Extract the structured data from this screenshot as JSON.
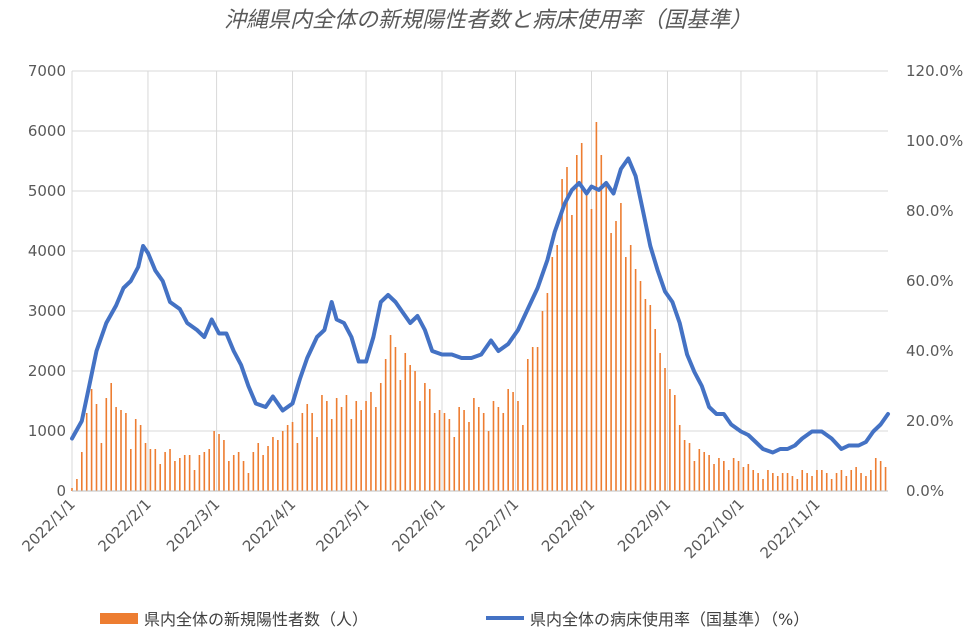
{
  "chart_data": {
    "type": "bar+line",
    "title": "沖縄県内全体の新規陽性者数と病床使用率（国基準）",
    "x_tick_labels": [
      "2022/1/1",
      "2022/2/1",
      "2022/3/1",
      "2022/4/1",
      "2022/5/1",
      "2022/6/1",
      "2022/7/1",
      "2022/8/1",
      "2022/9/1",
      "2022/10/1",
      "2022/11/1"
    ],
    "x_range": [
      "2022-01-01",
      "2022-11-30"
    ],
    "y_left": {
      "ylim": [
        0,
        7000
      ],
      "ticks": [
        "0",
        "1000",
        "2000",
        "3000",
        "4000",
        "5000",
        "6000",
        "7000"
      ]
    },
    "y_right": {
      "ylim": [
        0,
        120
      ],
      "ticks": [
        "0.0%",
        "20.0%",
        "40.0%",
        "60.0%",
        "80.0%",
        "100.0%",
        "120.0%"
      ]
    },
    "grid": true,
    "legend_position": "bottom",
    "series": [
      {
        "name": "県内全体の新規陽性者数（人）",
        "type": "bar",
        "axis": "left",
        "color": "#ED7D31",
        "points": [
          [
            "2022-01-01",
            50
          ],
          [
            "2022-01-03",
            200
          ],
          [
            "2022-01-05",
            650
          ],
          [
            "2022-01-07",
            1300
          ],
          [
            "2022-01-09",
            1700
          ],
          [
            "2022-01-11",
            1450
          ],
          [
            "2022-01-13",
            800
          ],
          [
            "2022-01-15",
            1550
          ],
          [
            "2022-01-17",
            1800
          ],
          [
            "2022-01-19",
            1400
          ],
          [
            "2022-01-21",
            1350
          ],
          [
            "2022-01-23",
            1300
          ],
          [
            "2022-01-25",
            700
          ],
          [
            "2022-01-27",
            1200
          ],
          [
            "2022-01-29",
            1100
          ],
          [
            "2022-01-31",
            800
          ],
          [
            "2022-02-02",
            700
          ],
          [
            "2022-02-04",
            700
          ],
          [
            "2022-02-06",
            450
          ],
          [
            "2022-02-08",
            650
          ],
          [
            "2022-02-10",
            700
          ],
          [
            "2022-02-12",
            500
          ],
          [
            "2022-02-14",
            550
          ],
          [
            "2022-02-16",
            600
          ],
          [
            "2022-02-18",
            600
          ],
          [
            "2022-02-20",
            350
          ],
          [
            "2022-02-22",
            600
          ],
          [
            "2022-02-24",
            650
          ],
          [
            "2022-02-26",
            700
          ],
          [
            "2022-02-28",
            1000
          ],
          [
            "2022-03-02",
            950
          ],
          [
            "2022-03-04",
            850
          ],
          [
            "2022-03-06",
            500
          ],
          [
            "2022-03-08",
            600
          ],
          [
            "2022-03-10",
            650
          ],
          [
            "2022-03-12",
            500
          ],
          [
            "2022-03-14",
            300
          ],
          [
            "2022-03-16",
            650
          ],
          [
            "2022-03-18",
            800
          ],
          [
            "2022-03-20",
            600
          ],
          [
            "2022-03-22",
            750
          ],
          [
            "2022-03-24",
            900
          ],
          [
            "2022-03-26",
            850
          ],
          [
            "2022-03-28",
            1000
          ],
          [
            "2022-03-30",
            1100
          ],
          [
            "2022-04-01",
            1150
          ],
          [
            "2022-04-03",
            800
          ],
          [
            "2022-04-05",
            1300
          ],
          [
            "2022-04-07",
            1450
          ],
          [
            "2022-04-09",
            1300
          ],
          [
            "2022-04-11",
            900
          ],
          [
            "2022-04-13",
            1600
          ],
          [
            "2022-04-15",
            1500
          ],
          [
            "2022-04-17",
            1200
          ],
          [
            "2022-04-19",
            1550
          ],
          [
            "2022-04-21",
            1400
          ],
          [
            "2022-04-23",
            1600
          ],
          [
            "2022-04-25",
            1200
          ],
          [
            "2022-04-27",
            1500
          ],
          [
            "2022-04-29",
            1350
          ],
          [
            "2022-05-01",
            1500
          ],
          [
            "2022-05-03",
            1650
          ],
          [
            "2022-05-05",
            1400
          ],
          [
            "2022-05-07",
            1800
          ],
          [
            "2022-05-09",
            2200
          ],
          [
            "2022-05-11",
            2600
          ],
          [
            "2022-05-13",
            2400
          ],
          [
            "2022-05-15",
            1850
          ],
          [
            "2022-05-17",
            2300
          ],
          [
            "2022-05-19",
            2100
          ],
          [
            "2022-05-21",
            2000
          ],
          [
            "2022-05-23",
            1500
          ],
          [
            "2022-05-25",
            1800
          ],
          [
            "2022-05-27",
            1700
          ],
          [
            "2022-05-29",
            1300
          ],
          [
            "2022-05-31",
            1350
          ],
          [
            "2022-06-02",
            1300
          ],
          [
            "2022-06-04",
            1200
          ],
          [
            "2022-06-06",
            900
          ],
          [
            "2022-06-08",
            1400
          ],
          [
            "2022-06-10",
            1350
          ],
          [
            "2022-06-12",
            1150
          ],
          [
            "2022-06-14",
            1550
          ],
          [
            "2022-06-16",
            1400
          ],
          [
            "2022-06-18",
            1300
          ],
          [
            "2022-06-20",
            1000
          ],
          [
            "2022-06-22",
            1500
          ],
          [
            "2022-06-24",
            1400
          ],
          [
            "2022-06-26",
            1300
          ],
          [
            "2022-06-28",
            1700
          ],
          [
            "2022-06-30",
            1650
          ],
          [
            "2022-07-02",
            1500
          ],
          [
            "2022-07-04",
            1100
          ],
          [
            "2022-07-06",
            2200
          ],
          [
            "2022-07-08",
            2400
          ],
          [
            "2022-07-10",
            2400
          ],
          [
            "2022-07-12",
            3000
          ],
          [
            "2022-07-14",
            3300
          ],
          [
            "2022-07-16",
            3900
          ],
          [
            "2022-07-18",
            4100
          ],
          [
            "2022-07-20",
            5200
          ],
          [
            "2022-07-22",
            5400
          ],
          [
            "2022-07-24",
            4600
          ],
          [
            "2022-07-26",
            5600
          ],
          [
            "2022-07-28",
            5800
          ],
          [
            "2022-07-30",
            5000
          ],
          [
            "2022-08-01",
            4700
          ],
          [
            "2022-08-03",
            6150
          ],
          [
            "2022-08-05",
            5600
          ],
          [
            "2022-08-07",
            5100
          ],
          [
            "2022-08-09",
            4300
          ],
          [
            "2022-08-11",
            4500
          ],
          [
            "2022-08-13",
            4800
          ],
          [
            "2022-08-15",
            3900
          ],
          [
            "2022-08-17",
            4100
          ],
          [
            "2022-08-19",
            3700
          ],
          [
            "2022-08-21",
            3500
          ],
          [
            "2022-08-23",
            3200
          ],
          [
            "2022-08-25",
            3100
          ],
          [
            "2022-08-27",
            2700
          ],
          [
            "2022-08-29",
            2300
          ],
          [
            "2022-08-31",
            2050
          ],
          [
            "2022-09-02",
            1700
          ],
          [
            "2022-09-04",
            1600
          ],
          [
            "2022-09-06",
            1100
          ],
          [
            "2022-09-08",
            850
          ],
          [
            "2022-09-10",
            800
          ],
          [
            "2022-09-12",
            500
          ],
          [
            "2022-09-14",
            700
          ],
          [
            "2022-09-16",
            650
          ],
          [
            "2022-09-18",
            600
          ],
          [
            "2022-09-20",
            450
          ],
          [
            "2022-09-22",
            550
          ],
          [
            "2022-09-24",
            500
          ],
          [
            "2022-09-26",
            350
          ],
          [
            "2022-09-28",
            550
          ],
          [
            "2022-09-30",
            500
          ],
          [
            "2022-10-02",
            400
          ],
          [
            "2022-10-04",
            450
          ],
          [
            "2022-10-06",
            350
          ],
          [
            "2022-10-08",
            300
          ],
          [
            "2022-10-10",
            200
          ],
          [
            "2022-10-12",
            350
          ],
          [
            "2022-10-14",
            300
          ],
          [
            "2022-10-16",
            250
          ],
          [
            "2022-10-18",
            300
          ],
          [
            "2022-10-20",
            300
          ],
          [
            "2022-10-22",
            250
          ],
          [
            "2022-10-24",
            200
          ],
          [
            "2022-10-26",
            350
          ],
          [
            "2022-10-28",
            300
          ],
          [
            "2022-10-30",
            250
          ],
          [
            "2022-11-01",
            350
          ],
          [
            "2022-11-03",
            350
          ],
          [
            "2022-11-05",
            300
          ],
          [
            "2022-11-07",
            200
          ],
          [
            "2022-11-09",
            300
          ],
          [
            "2022-11-11",
            350
          ],
          [
            "2022-11-13",
            250
          ],
          [
            "2022-11-15",
            350
          ],
          [
            "2022-11-17",
            400
          ],
          [
            "2022-11-19",
            300
          ],
          [
            "2022-11-21",
            250
          ],
          [
            "2022-11-23",
            350
          ],
          [
            "2022-11-25",
            550
          ],
          [
            "2022-11-27",
            500
          ],
          [
            "2022-11-29",
            400
          ]
        ]
      },
      {
        "name": "県内全体の病床使用率（国基準）（%）",
        "type": "line",
        "axis": "right",
        "color": "#4472C4",
        "points": [
          [
            "2022-01-01",
            15
          ],
          [
            "2022-01-05",
            20
          ],
          [
            "2022-01-08",
            30
          ],
          [
            "2022-01-11",
            40
          ],
          [
            "2022-01-15",
            48
          ],
          [
            "2022-01-19",
            53
          ],
          [
            "2022-01-22",
            58
          ],
          [
            "2022-01-25",
            60
          ],
          [
            "2022-01-28",
            64
          ],
          [
            "2022-01-30",
            70
          ],
          [
            "2022-02-01",
            68
          ],
          [
            "2022-02-04",
            63
          ],
          [
            "2022-02-07",
            60
          ],
          [
            "2022-02-10",
            54
          ],
          [
            "2022-02-14",
            52
          ],
          [
            "2022-02-17",
            48
          ],
          [
            "2022-02-21",
            46
          ],
          [
            "2022-02-24",
            44
          ],
          [
            "2022-02-27",
            49
          ],
          [
            "2022-03-02",
            45
          ],
          [
            "2022-03-05",
            45
          ],
          [
            "2022-03-08",
            40
          ],
          [
            "2022-03-11",
            36
          ],
          [
            "2022-03-14",
            30
          ],
          [
            "2022-03-17",
            25
          ],
          [
            "2022-03-21",
            24
          ],
          [
            "2022-03-24",
            27
          ],
          [
            "2022-03-28",
            23
          ],
          [
            "2022-04-01",
            25
          ],
          [
            "2022-04-04",
            32
          ],
          [
            "2022-04-07",
            38
          ],
          [
            "2022-04-11",
            44
          ],
          [
            "2022-04-14",
            46
          ],
          [
            "2022-04-17",
            54
          ],
          [
            "2022-04-19",
            49
          ],
          [
            "2022-04-22",
            48
          ],
          [
            "2022-04-25",
            44
          ],
          [
            "2022-04-28",
            37
          ],
          [
            "2022-05-01",
            37
          ],
          [
            "2022-05-04",
            44
          ],
          [
            "2022-05-07",
            54
          ],
          [
            "2022-05-10",
            56
          ],
          [
            "2022-05-13",
            54
          ],
          [
            "2022-05-16",
            51
          ],
          [
            "2022-05-19",
            48
          ],
          [
            "2022-05-22",
            50
          ],
          [
            "2022-05-25",
            46
          ],
          [
            "2022-05-28",
            40
          ],
          [
            "2022-06-01",
            39
          ],
          [
            "2022-06-05",
            39
          ],
          [
            "2022-06-09",
            38
          ],
          [
            "2022-06-13",
            38
          ],
          [
            "2022-06-17",
            39
          ],
          [
            "2022-06-21",
            43
          ],
          [
            "2022-06-24",
            40
          ],
          [
            "2022-06-28",
            42
          ],
          [
            "2022-07-02",
            46
          ],
          [
            "2022-07-06",
            52
          ],
          [
            "2022-07-10",
            58
          ],
          [
            "2022-07-14",
            66
          ],
          [
            "2022-07-17",
            74
          ],
          [
            "2022-07-21",
            82
          ],
          [
            "2022-07-24",
            86
          ],
          [
            "2022-07-27",
            88
          ],
          [
            "2022-07-30",
            85
          ],
          [
            "2022-08-01",
            87
          ],
          [
            "2022-08-04",
            86
          ],
          [
            "2022-08-07",
            88
          ],
          [
            "2022-08-10",
            85
          ],
          [
            "2022-08-13",
            92
          ],
          [
            "2022-08-16",
            95
          ],
          [
            "2022-08-19",
            90
          ],
          [
            "2022-08-22",
            80
          ],
          [
            "2022-08-25",
            70
          ],
          [
            "2022-08-28",
            63
          ],
          [
            "2022-08-31",
            57
          ],
          [
            "2022-09-03",
            54
          ],
          [
            "2022-09-06",
            48
          ],
          [
            "2022-09-09",
            39
          ],
          [
            "2022-09-12",
            34
          ],
          [
            "2022-09-15",
            30
          ],
          [
            "2022-09-18",
            24
          ],
          [
            "2022-09-21",
            22
          ],
          [
            "2022-09-24",
            22
          ],
          [
            "2022-09-27",
            19
          ],
          [
            "2022-10-01",
            17
          ],
          [
            "2022-10-04",
            16
          ],
          [
            "2022-10-07",
            14
          ],
          [
            "2022-10-10",
            12
          ],
          [
            "2022-10-14",
            11
          ],
          [
            "2022-10-17",
            12
          ],
          [
            "2022-10-20",
            12
          ],
          [
            "2022-10-23",
            13
          ],
          [
            "2022-10-26",
            15
          ],
          [
            "2022-10-30",
            17
          ],
          [
            "2022-11-03",
            17
          ],
          [
            "2022-11-07",
            15
          ],
          [
            "2022-11-11",
            12
          ],
          [
            "2022-11-14",
            13
          ],
          [
            "2022-11-18",
            13
          ],
          [
            "2022-11-21",
            14
          ],
          [
            "2022-11-24",
            17
          ],
          [
            "2022-11-27",
            19
          ],
          [
            "2022-11-30",
            22
          ]
        ]
      }
    ]
  }
}
